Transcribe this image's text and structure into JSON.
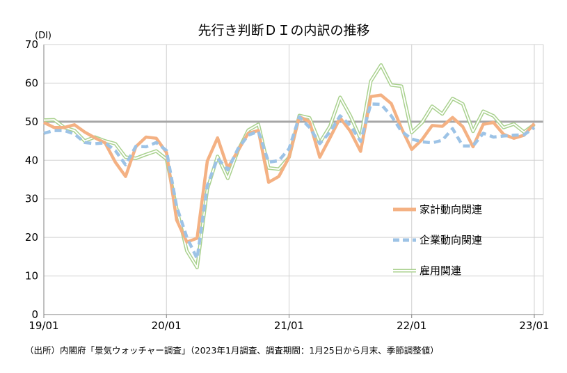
{
  "chart_data": {
    "type": "line",
    "title": "先行き判断ＤＩの内訳の推移",
    "yunit": "(DI)",
    "ylim": [
      0,
      70
    ],
    "yticks": [
      "0",
      "10",
      "20",
      "30",
      "40",
      "50",
      "60",
      "70"
    ],
    "xlabels": [
      "19/01",
      "20/01",
      "21/01",
      "22/01",
      "23/01"
    ],
    "reference_line": 50,
    "grid": true,
    "legend_position": "right",
    "x": [
      "2019-01",
      "2019-02",
      "2019-03",
      "2019-04",
      "2019-05",
      "2019-06",
      "2019-07",
      "2019-08",
      "2019-09",
      "2019-10",
      "2019-11",
      "2019-12",
      "2020-01",
      "2020-02",
      "2020-03",
      "2020-04",
      "2020-05",
      "2020-06",
      "2020-07",
      "2020-08",
      "2020-09",
      "2020-10",
      "2020-11",
      "2020-12",
      "2021-01",
      "2021-02",
      "2021-03",
      "2021-04",
      "2021-05",
      "2021-06",
      "2021-07",
      "2021-08",
      "2021-09",
      "2021-10",
      "2021-11",
      "2021-12",
      "2022-01",
      "2022-02",
      "2022-03",
      "2022-04",
      "2022-05",
      "2022-06",
      "2022-07",
      "2022-08",
      "2022-09",
      "2022-10",
      "2022-11",
      "2022-12",
      "2023-01"
    ],
    "series": [
      {
        "name": "家計動向関連",
        "color": "#f4b183",
        "style": "solid",
        "values": [
          49.8,
          48.5,
          48.5,
          49.2,
          47.3,
          45.8,
          44.5,
          39.5,
          35.8,
          43.5,
          46.0,
          45.7,
          42.0,
          24.5,
          18.8,
          19.8,
          39.8,
          45.8,
          38.0,
          42.5,
          47.0,
          47.7,
          34.3,
          35.8,
          40.8,
          51.3,
          50.0,
          40.8,
          45.8,
          51.0,
          47.5,
          42.3,
          56.5,
          56.9,
          54.7,
          48.3,
          42.8,
          45.3,
          49.0,
          48.8,
          51.1,
          48.7,
          43.5,
          49.3,
          49.8,
          46.7,
          45.7,
          46.5,
          49.5
        ]
      },
      {
        "name": "企業動向関連",
        "color": "#9dc3e6",
        "style": "dashed",
        "values": [
          47.0,
          47.7,
          47.7,
          46.8,
          44.6,
          44.3,
          44.5,
          42.5,
          38.8,
          43.6,
          43.5,
          44.6,
          42.5,
          28.0,
          20.0,
          14.5,
          33.5,
          40.5,
          37.5,
          43.0,
          46.5,
          47.5,
          39.5,
          39.9,
          43.0,
          51.3,
          48.5,
          44.3,
          47.3,
          51.5,
          49.0,
          44.9,
          54.6,
          54.5,
          51.5,
          47.5,
          45.5,
          44.8,
          44.5,
          45.2,
          48.2,
          43.7,
          43.7,
          47.0,
          46.0,
          46.3,
          46.5,
          46.6,
          48.5
        ]
      },
      {
        "name": "雇用関連",
        "color": "#a9d18e",
        "style": "double",
        "values": [
          50.4,
          50.5,
          48.5,
          47.7,
          45.0,
          46.0,
          45.0,
          44.3,
          40.8,
          40.5,
          41.5,
          42.4,
          40.3,
          27.5,
          16.5,
          12.2,
          32.5,
          41.0,
          35.3,
          42.5,
          47.8,
          49.3,
          38.0,
          37.7,
          40.8,
          51.6,
          51.0,
          44.5,
          48.8,
          56.3,
          51.5,
          45.6,
          60.5,
          64.7,
          59.5,
          59.2,
          47.2,
          49.7,
          54.0,
          52.0,
          56.0,
          54.6,
          47.5,
          52.7,
          51.5,
          48.5,
          49.4,
          47.3,
          49.3
        ]
      }
    ]
  },
  "source_note": "（出所）内閣府「景気ウォッチャー調査」（2023年1月調査、調査期間：1月25日から月末、季節調整値）"
}
